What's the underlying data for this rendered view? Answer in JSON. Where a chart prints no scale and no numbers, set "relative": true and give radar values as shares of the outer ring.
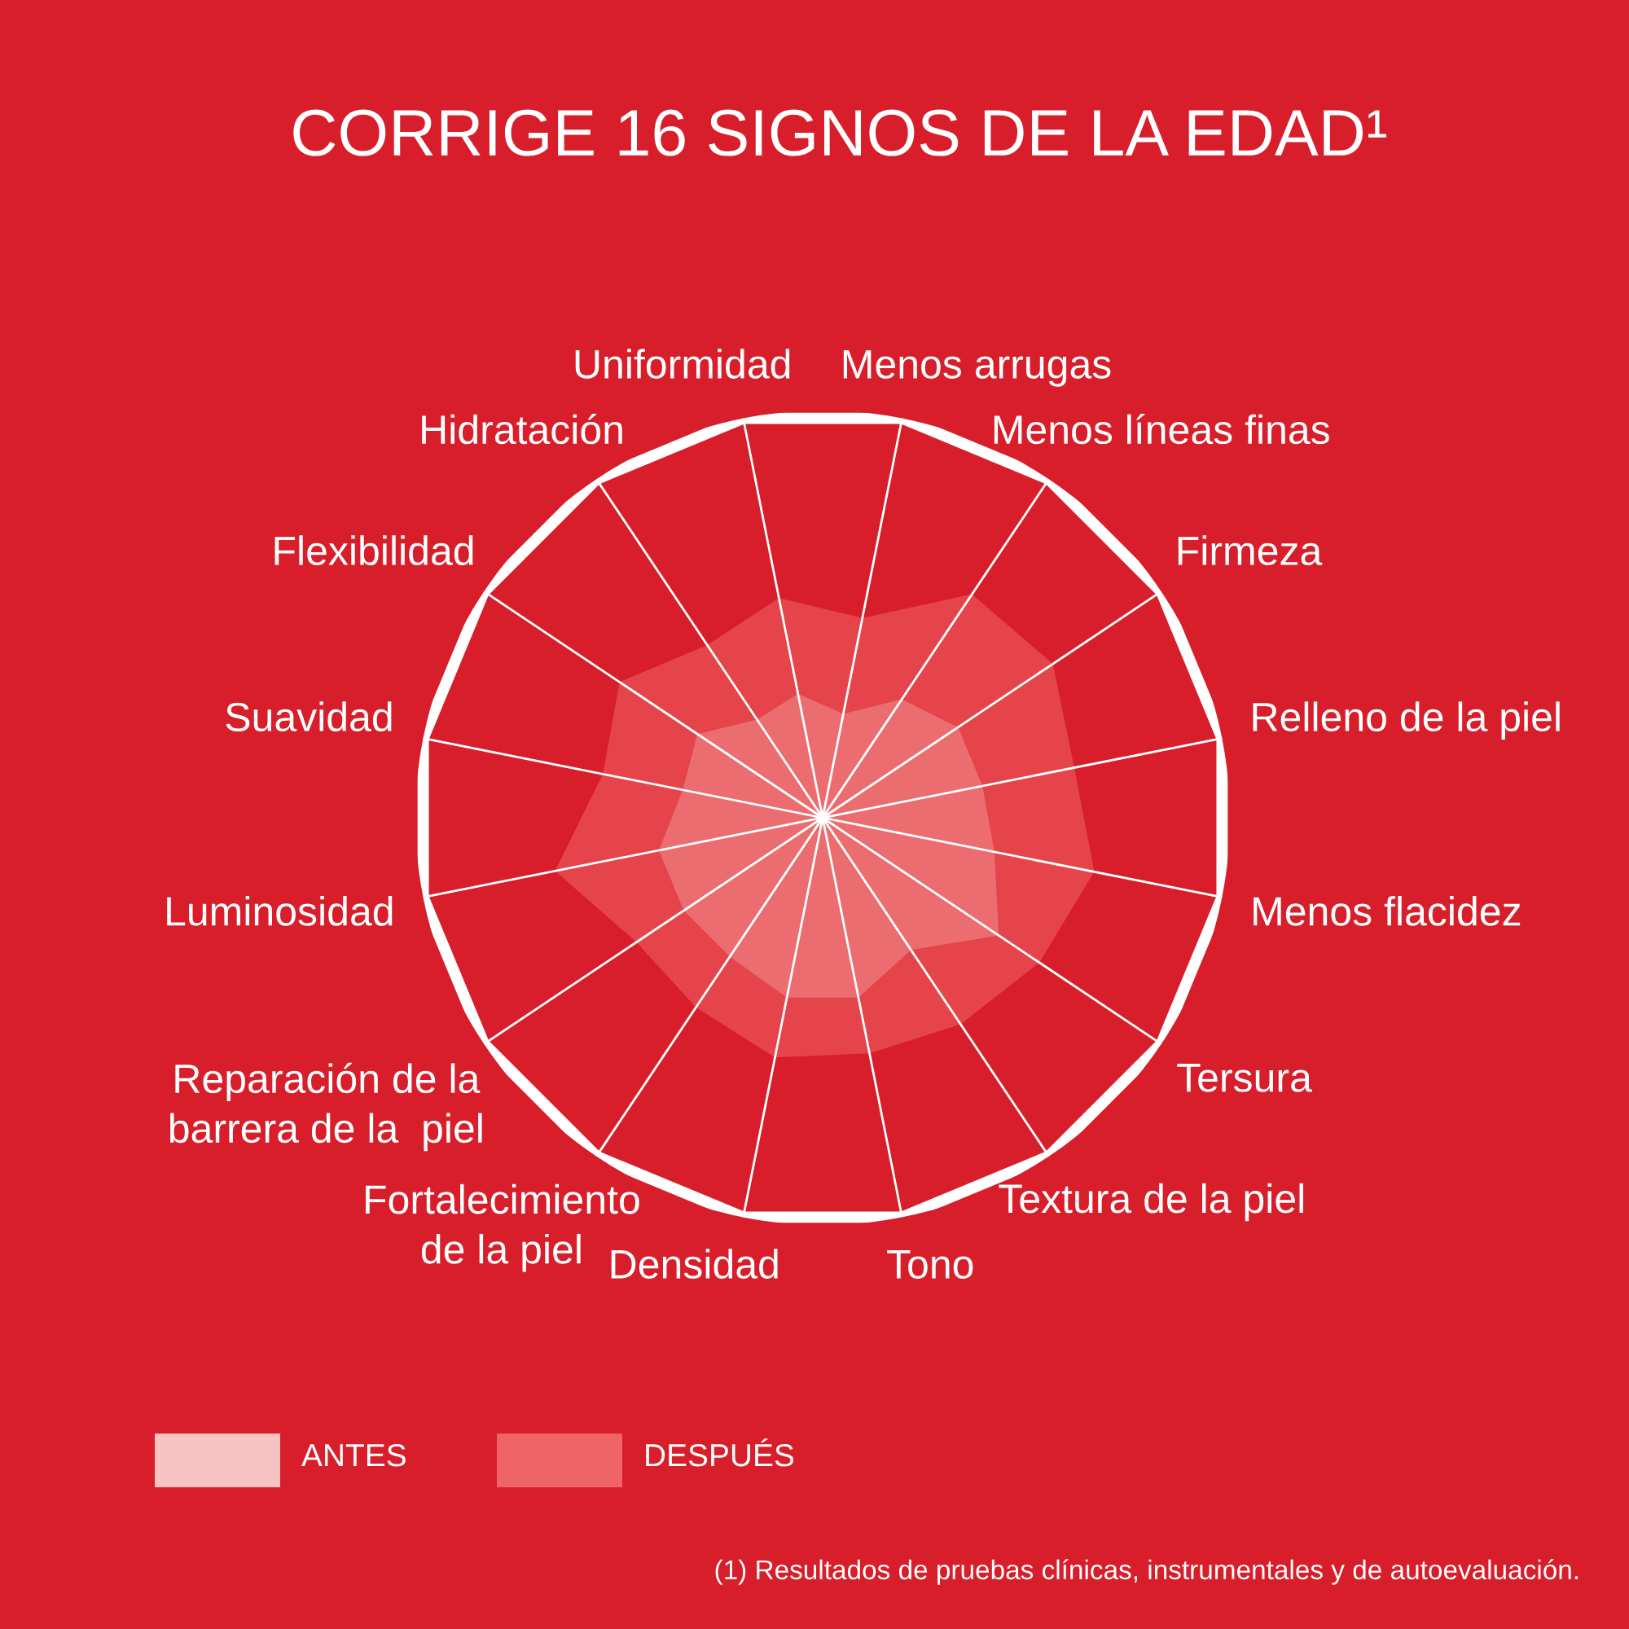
{
  "chart_data": {
    "type": "radar",
    "title": "CORRIGE 16 SIGNOS DE LA EDAD¹",
    "relative": true,
    "legend": "bottom",
    "categories": [
      "Menos arrugas",
      "Menos líneas finas",
      "Firmeza",
      "Relleno de la piel",
      "Menos flacidez",
      "Tersura",
      "Textura de la piel",
      "Tono",
      "Densidad",
      "Fortalecimiento\nde la piel",
      "Reparación de la\nbarrera de la  piel",
      "Luminosidad",
      "Suavidad",
      "Flexibilidad",
      "Hidratación",
      "Uniformidad"
    ],
    "series": [
      {
        "name": "ANTES",
        "color": "#f7c3c3",
        "values": [
          0.26,
          0.35,
          0.4,
          0.4,
          0.43,
          0.52,
          0.39,
          0.45,
          0.45,
          0.41,
          0.41,
          0.41,
          0.35,
          0.37,
          0.29,
          0.31
        ]
      },
      {
        "name": "DESPUÉS",
        "color": "#ef6464",
        "values": [
          0.5,
          0.66,
          0.68,
          0.63,
          0.68,
          0.64,
          0.61,
          0.59,
          0.6,
          0.56,
          0.55,
          0.67,
          0.55,
          0.6,
          0.51,
          0.55
        ]
      }
    ],
    "annotations": [
      "(1) Resultados de pruebas clínicas, instrumentales y de autoevaluación."
    ]
  }
}
